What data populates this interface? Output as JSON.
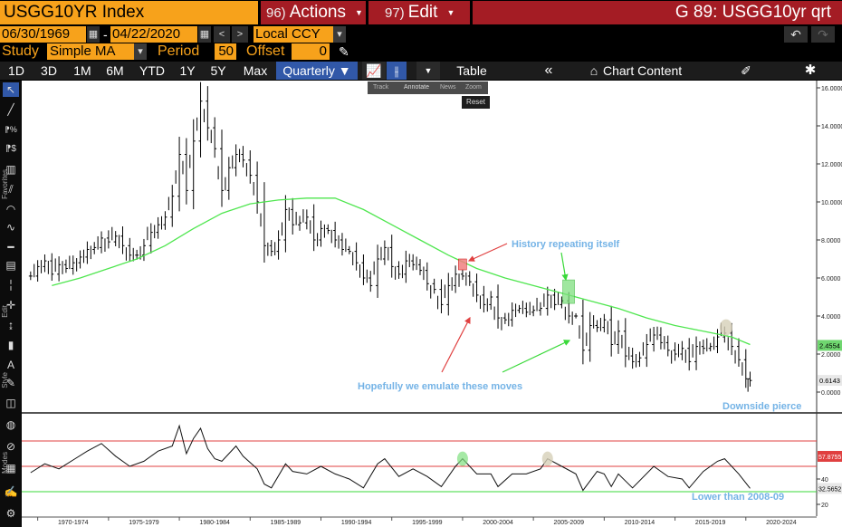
{
  "header": {
    "ticker": "USGG10YR Index",
    "actions_num": "96)",
    "actions_label": "Actions",
    "edit_num": "97)",
    "edit_label": "Edit",
    "quote_title": "G 89: USGG10yr qrt"
  },
  "range": {
    "start": "06/30/1969",
    "end": "04/22/2020",
    "currency": "Local CCY"
  },
  "study": {
    "label": "Study",
    "type": "Simple MA",
    "period_label": "Period",
    "period": "50",
    "offset_label": "Offset",
    "offset": "0"
  },
  "toolbar": {
    "ranges": [
      "1D",
      "3D",
      "1M",
      "6M",
      "YTD",
      "1Y",
      "5Y",
      "Max"
    ],
    "frequency": "Quarterly",
    "table_label": "Table",
    "chart_content_label": "Chart Content"
  },
  "floatbar": {
    "items": [
      "Track",
      "Annotate",
      "News",
      "Zoom"
    ],
    "reset": "Reset"
  },
  "side_labels": [
    "Favorites",
    "Edit",
    "Style",
    "Modes"
  ],
  "colors": {
    "orange": "#f7a21b",
    "red": "#a41c24",
    "active": "#3158a8",
    "ma_line": "#4fe64f",
    "annotation_text": "#74b3e6"
  },
  "chart_data": [
    {
      "type": "line",
      "x_tick_labels": [
        "1970-1974",
        "1975-1979",
        "1980-1984",
        "1985-1989",
        "1990-1994",
        "1995-1999",
        "2000-2004",
        "2005-2009",
        "2010-2014",
        "2015-2019",
        "2020-2024"
      ],
      "y_tick_labels": [
        "0.0000",
        "2.0000",
        "4.0000",
        "6.0000",
        "8.0000",
        "10.0000",
        "12.0000",
        "14.0000",
        "16.0000"
      ],
      "ylim": [
        0,
        16
      ],
      "series": [
        {
          "points": [
            [
              1969.5,
              6.1
            ],
            [
              1970.0,
              6.6
            ],
            [
              1970.5,
              6.9
            ],
            [
              1971.0,
              6.2
            ],
            [
              1971.5,
              6.7
            ],
            [
              1972.0,
              6.5
            ],
            [
              1972.5,
              6.8
            ],
            [
              1973.0,
              7.1
            ],
            [
              1973.5,
              7.5
            ],
            [
              1974.0,
              7.6
            ],
            [
              1974.5,
              8.1
            ],
            [
              1975.0,
              7.9
            ],
            [
              1975.5,
              8.2
            ],
            [
              1976.0,
              7.7
            ],
            [
              1976.5,
              7.2
            ],
            [
              1977.0,
              7.2
            ],
            [
              1977.5,
              7.7
            ],
            [
              1978.0,
              8.4
            ],
            [
              1978.5,
              8.8
            ],
            [
              1979.0,
              9.2
            ],
            [
              1979.5,
              10.3
            ],
            [
              1980.0,
              12.5
            ],
            [
              1980.5,
              10.6
            ],
            [
              1981.0,
              13.2
            ],
            [
              1981.5,
              15.3
            ],
            [
              1982.0,
              13.9
            ],
            [
              1982.5,
              12.8
            ],
            [
              1983.0,
              10.6
            ],
            [
              1983.5,
              11.8
            ],
            [
              1984.0,
              12.5
            ],
            [
              1984.5,
              12.2
            ],
            [
              1985.0,
              11.4
            ],
            [
              1985.5,
              10.0
            ],
            [
              1986.0,
              7.7
            ],
            [
              1986.5,
              7.4
            ],
            [
              1987.0,
              8.0
            ],
            [
              1987.5,
              9.6
            ],
            [
              1988.0,
              8.8
            ],
            [
              1988.5,
              8.9
            ],
            [
              1989.0,
              9.2
            ],
            [
              1989.5,
              8.0
            ],
            [
              1990.0,
              8.6
            ],
            [
              1990.5,
              8.5
            ],
            [
              1991.0,
              8.0
            ],
            [
              1991.5,
              7.5
            ],
            [
              1992.0,
              7.4
            ],
            [
              1992.5,
              6.8
            ],
            [
              1993.0,
              6.0
            ],
            [
              1993.5,
              5.6
            ],
            [
              1994.0,
              7.0
            ],
            [
              1994.5,
              7.6
            ],
            [
              1995.0,
              6.6
            ],
            [
              1995.5,
              6.2
            ],
            [
              1996.0,
              6.9
            ],
            [
              1996.5,
              6.7
            ],
            [
              1997.0,
              6.4
            ],
            [
              1997.5,
              5.7
            ],
            [
              1998.0,
              5.4
            ],
            [
              1998.5,
              4.6
            ],
            [
              1999.0,
              5.6
            ],
            [
              1999.5,
              6.2
            ],
            [
              2000.0,
              6.1
            ],
            [
              2000.5,
              5.8
            ],
            [
              2001.0,
              5.1
            ],
            [
              2001.5,
              4.6
            ],
            [
              2002.0,
              5.0
            ],
            [
              2002.5,
              3.9
            ],
            [
              2003.0,
              3.8
            ],
            [
              2003.5,
              4.3
            ],
            [
              2004.0,
              4.4
            ],
            [
              2004.5,
              4.2
            ],
            [
              2005.0,
              4.3
            ],
            [
              2005.5,
              4.4
            ],
            [
              2006.0,
              5.1
            ],
            [
              2006.5,
              4.6
            ],
            [
              2007.0,
              4.8
            ],
            [
              2007.5,
              4.0
            ],
            [
              2008.0,
              4.0
            ],
            [
              2008.5,
              2.2
            ],
            [
              2009.0,
              3.5
            ],
            [
              2009.5,
              3.4
            ],
            [
              2010.0,
              3.8
            ],
            [
              2010.5,
              2.5
            ],
            [
              2011.0,
              3.2
            ],
            [
              2011.5,
              1.9
            ],
            [
              2012.0,
              1.6
            ],
            [
              2012.5,
              1.8
            ],
            [
              2013.0,
              2.5
            ],
            [
              2013.5,
              3.0
            ],
            [
              2014.0,
              2.6
            ],
            [
              2014.5,
              2.2
            ],
            [
              2015.0,
              2.0
            ],
            [
              2015.5,
              2.3
            ],
            [
              2016.0,
              1.6
            ],
            [
              2016.5,
              2.4
            ],
            [
              2017.0,
              2.3
            ],
            [
              2017.5,
              2.4
            ],
            [
              2018.0,
              2.9
            ],
            [
              2018.5,
              3.1
            ],
            [
              2019.0,
              2.4
            ],
            [
              2019.5,
              1.7
            ],
            [
              2020.0,
              0.7
            ],
            [
              2020.3,
              0.61
            ]
          ]
        },
        {
          "points": [
            [
              1971.0,
              5.6
            ],
            [
              1973.0,
              6.0
            ],
            [
              1975.0,
              6.5
            ],
            [
              1977.0,
              7.0
            ],
            [
              1979.0,
              7.7
            ],
            [
              1981.0,
              8.6
            ],
            [
              1983.0,
              9.4
            ],
            [
              1985.0,
              9.9
            ],
            [
              1987.0,
              10.1
            ],
            [
              1989.0,
              10.2
            ],
            [
              1991.0,
              10.2
            ],
            [
              1993.0,
              9.6
            ],
            [
              1995.0,
              8.8
            ],
            [
              1997.0,
              8.0
            ],
            [
              1999.0,
              7.2
            ],
            [
              2001.0,
              6.5
            ],
            [
              2003.0,
              6.0
            ],
            [
              2005.0,
              5.6
            ],
            [
              2007.0,
              5.2
            ],
            [
              2009.0,
              4.8
            ],
            [
              2011.0,
              4.4
            ],
            [
              2013.0,
              3.9
            ],
            [
              2015.0,
              3.5
            ],
            [
              2017.0,
              3.2
            ],
            [
              2019.0,
              2.9
            ],
            [
              2020.3,
              2.5
            ]
          ]
        }
      ],
      "last_value_labels": [
        "2.4554",
        "0.6143"
      ],
      "annotations": [
        "History repeating itself",
        "Hopefully we emulate these moves",
        "Downside pierce"
      ]
    },
    {
      "type": "line",
      "y_tick_labels": [
        "20",
        "40"
      ],
      "levels": [
        70,
        50,
        30
      ],
      "last_value_labels": [
        "57.8755",
        "32.5652"
      ],
      "series": [
        {
          "points": [
            [
              1969.5,
              45
            ],
            [
              1970.5,
              52
            ],
            [
              1971.5,
              48
            ],
            [
              1972.5,
              55
            ],
            [
              1973.5,
              62
            ],
            [
              1974.5,
              68
            ],
            [
              1975.5,
              58
            ],
            [
              1976.5,
              50
            ],
            [
              1977.5,
              54
            ],
            [
              1978.5,
              62
            ],
            [
              1979.5,
              66
            ],
            [
              1980.0,
              82
            ],
            [
              1980.5,
              60
            ],
            [
              1981.0,
              72
            ],
            [
              1981.5,
              80
            ],
            [
              1982.0,
              64
            ],
            [
              1982.5,
              56
            ],
            [
              1983.0,
              54
            ],
            [
              1983.5,
              60
            ],
            [
              1984.0,
              66
            ],
            [
              1984.5,
              58
            ],
            [
              1985.5,
              48
            ],
            [
              1986.0,
              36
            ],
            [
              1986.5,
              33
            ],
            [
              1987.5,
              52
            ],
            [
              1988.0,
              46
            ],
            [
              1989.0,
              44
            ],
            [
              1990.0,
              50
            ],
            [
              1991.0,
              44
            ],
            [
              1992.0,
              40
            ],
            [
              1993.0,
              33
            ],
            [
              1994.0,
              52
            ],
            [
              1994.5,
              56
            ],
            [
              1995.5,
              42
            ],
            [
              1996.5,
              48
            ],
            [
              1997.5,
              42
            ],
            [
              1998.5,
              34
            ],
            [
              1999.5,
              50
            ],
            [
              2000.0,
              56
            ],
            [
              2001.0,
              44
            ],
            [
              2002.0,
              44
            ],
            [
              2002.5,
              34
            ],
            [
              2003.5,
              44
            ],
            [
              2004.5,
              44
            ],
            [
              2005.5,
              48
            ],
            [
              2006.0,
              56
            ],
            [
              2007.0,
              50
            ],
            [
              2008.0,
              44
            ],
            [
              2008.5,
              31
            ],
            [
              2009.5,
              46
            ],
            [
              2010.0,
              44
            ],
            [
              2010.5,
              34
            ],
            [
              2011.0,
              44
            ],
            [
              2012.0,
              33
            ],
            [
              2013.5,
              50
            ],
            [
              2014.5,
              42
            ],
            [
              2015.5,
              40
            ],
            [
              2016.0,
              33
            ],
            [
              2017.0,
              46
            ],
            [
              2018.0,
              54
            ],
            [
              2018.5,
              56
            ],
            [
              2019.5,
              44
            ],
            [
              2020.3,
              32.6
            ]
          ]
        }
      ],
      "annotations": [
        "Lower than 2008-09"
      ]
    }
  ]
}
